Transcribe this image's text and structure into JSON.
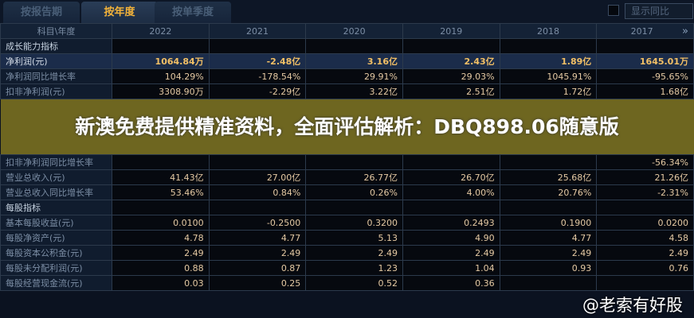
{
  "tabs": [
    {
      "label": "按报告期"
    },
    {
      "label": "按年度",
      "active": true
    },
    {
      "label": "按单季度"
    }
  ],
  "yoy_toggle": {
    "label": "显示同比",
    "checked": false
  },
  "table": {
    "header": [
      "科目\\年度",
      "2022",
      "2021",
      "2020",
      "2019",
      "2018",
      "2017"
    ],
    "rows": [
      {
        "label": "成长能力指标",
        "section": true,
        "values": [
          "",
          "",
          "",
          "",
          "",
          ""
        ]
      },
      {
        "label": "净利润(元)",
        "highlight": true,
        "values": [
          "1064.84万",
          "-2.48亿",
          "3.16亿",
          "2.43亿",
          "1.89亿",
          "1645.01万"
        ]
      },
      {
        "label": "净利润同比增长率",
        "values": [
          "104.29%",
          "-178.54%",
          "29.91%",
          "29.03%",
          "1045.91%",
          "-95.65%"
        ]
      },
      {
        "label": "扣非净利润(元)",
        "values": [
          "3308.90万",
          "-2.29亿",
          "3.22亿",
          "2.51亿",
          "1.72亿",
          "1.68亿"
        ]
      },
      {
        "label": "扣非净利润同比增长率",
        "values": [
          "",
          "",
          "",
          "",
          "",
          "-56.34%"
        ]
      },
      {
        "label": "营业总收入(元)",
        "values": [
          "41.43亿",
          "27.00亿",
          "26.77亿",
          "26.70亿",
          "25.68亿",
          "21.26亿"
        ]
      },
      {
        "label": "营业总收入同比增长率",
        "values": [
          "53.46%",
          "0.84%",
          "0.26%",
          "4.00%",
          "20.76%",
          "-2.31%"
        ]
      },
      {
        "label": "每股指标",
        "section": true,
        "values": [
          "",
          "",
          "",
          "",
          "",
          ""
        ]
      },
      {
        "label": "基本每股收益(元)",
        "values": [
          "0.0100",
          "-0.2500",
          "0.3200",
          "0.2493",
          "0.1900",
          "0.0200"
        ]
      },
      {
        "label": "每股净资产(元)",
        "values": [
          "4.78",
          "4.77",
          "5.13",
          "4.90",
          "4.77",
          "4.58"
        ]
      },
      {
        "label": "每股资本公积金(元)",
        "values": [
          "2.49",
          "2.49",
          "2.49",
          "2.49",
          "2.49",
          "2.49"
        ]
      },
      {
        "label": "每股未分配利润(元)",
        "values": [
          "0.88",
          "0.87",
          "1.23",
          "1.04",
          "0.93",
          "0.76"
        ]
      },
      {
        "label": "每股经营现金流(元)",
        "values": [
          "0.03",
          "0.25",
          "0.52",
          "0.36",
          "",
          ""
        ]
      }
    ]
  },
  "banner": {
    "text": "新澳免费提供精准资料，全面评估解析：DBQ898.06随意版"
  },
  "watermark": {
    "text": "@老索有好股"
  },
  "colors": {
    "accent": "#f2b23a",
    "value": "#e5c9a3",
    "background": "#06090f"
  }
}
